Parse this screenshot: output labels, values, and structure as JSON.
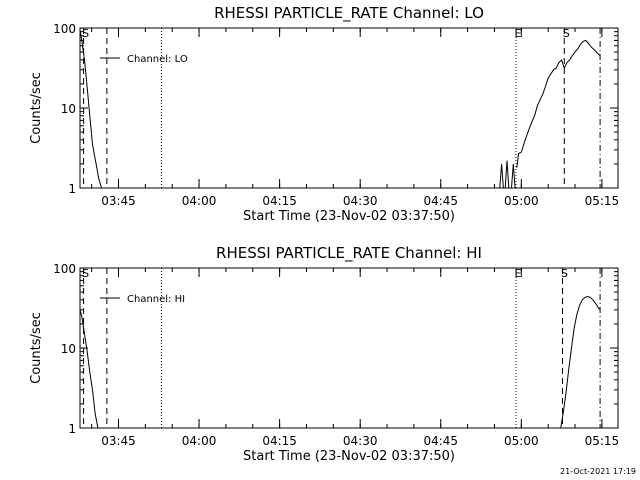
{
  "footer": {
    "timestamp": "21-Oct-2021 17:19"
  },
  "chart_data": [
    {
      "type": "line",
      "title": "RHESSI PARTICLE_RATE Channel: LO",
      "xlabel": "Start Time (23-Nov-02 03:37:50)",
      "ylabel": "Counts/sec",
      "yscale": "log",
      "ylim": [
        1,
        100
      ],
      "yticks": [
        {
          "value": 1,
          "label": "1"
        },
        {
          "value": 10,
          "label": "10"
        },
        {
          "value": 100,
          "label": "100"
        }
      ],
      "xlim": [
        "03:37:50",
        "05:18:00"
      ],
      "xticks": [
        {
          "time": "03:45",
          "label": "03:45"
        },
        {
          "time": "04:00",
          "label": "04:00"
        },
        {
          "time": "04:15",
          "label": "04:15"
        },
        {
          "time": "04:30",
          "label": "04:30"
        },
        {
          "time": "04:45",
          "label": "04:45"
        },
        {
          "time": "05:00",
          "label": "05:00"
        },
        {
          "time": "05:15",
          "label": "05:15"
        }
      ],
      "legend": {
        "label": "Channel: LO",
        "placement": "top-left"
      },
      "markers": [
        {
          "time": "03:38:30",
          "style": "dashed",
          "label": "S"
        },
        {
          "time": "03:42:50",
          "style": "dashed",
          "label": ""
        },
        {
          "time": "03:53:00",
          "style": "dotted",
          "label": ""
        },
        {
          "time": "04:59:00",
          "style": "dotted",
          "label": "E"
        },
        {
          "time": "05:08:00",
          "style": "dashed",
          "label": "S"
        },
        {
          "time": "05:14:40",
          "style": "dashdot",
          "label": ""
        }
      ],
      "series": [
        {
          "name": "Channel: LO",
          "segments": [
            {
              "x": [
                "03:37:50",
                "03:38:10",
                "03:38:40",
                "03:39:10",
                "03:39:40",
                "03:40:10",
                "03:40:50",
                "03:41:20",
                "03:41:50"
              ],
              "y": [
                95,
                70,
                40,
                18,
                8,
                3.5,
                2,
                1.3,
                1
              ]
            },
            {
              "x": [
                "04:56:00",
                "04:56:20",
                "04:56:40"
              ],
              "y": [
                1,
                2,
                1
              ]
            },
            {
              "x": [
                "04:57:00",
                "04:57:20",
                "04:57:40"
              ],
              "y": [
                1,
                2.2,
                1
              ]
            },
            {
              "x": [
                "04:58:10",
                "04:58:30",
                "04:58:50"
              ],
              "y": [
                1,
                2,
                1
              ]
            },
            {
              "x": [
                "04:59:10",
                "04:59:30",
                "05:00:00",
                "05:00:30",
                "05:01:00",
                "05:01:30",
                "05:02:00",
                "05:02:30",
                "05:03:00",
                "05:03:30",
                "05:04:00",
                "05:04:30",
                "05:05:00",
                "05:05:30",
                "05:06:00",
                "05:06:30",
                "05:07:00",
                "05:07:30",
                "05:08:00",
                "05:08:30",
                "05:09:00",
                "05:09:30",
                "05:10:00",
                "05:10:30",
                "05:11:00",
                "05:11:30",
                "05:12:00",
                "05:12:30",
                "05:13:00",
                "05:13:30",
                "05:14:00",
                "05:14:40"
              ],
              "y": [
                1.8,
                2.7,
                2.8,
                3.6,
                4.5,
                5.6,
                6.8,
                8.1,
                10.7,
                12.7,
                14.9,
                18.6,
                23.7,
                26.7,
                30,
                31.5,
                36.9,
                39.8,
                31.5,
                37,
                40,
                45,
                50,
                55,
                62,
                68,
                70,
                64,
                58,
                54,
                50,
                45
              ]
            }
          ]
        }
      ]
    },
    {
      "type": "line",
      "title": "RHESSI PARTICLE_RATE Channel: HI",
      "xlabel": "Start Time (23-Nov-02 03:37:50)",
      "ylabel": "Counts/sec",
      "yscale": "log",
      "ylim": [
        1,
        100
      ],
      "yticks": [
        {
          "value": 1,
          "label": "1"
        },
        {
          "value": 10,
          "label": "10"
        },
        {
          "value": 100,
          "label": "100"
        }
      ],
      "xlim": [
        "03:37:50",
        "05:18:00"
      ],
      "xticks": [
        {
          "time": "03:45",
          "label": "03:45"
        },
        {
          "time": "04:00",
          "label": "04:00"
        },
        {
          "time": "04:15",
          "label": "04:15"
        },
        {
          "time": "04:30",
          "label": "04:30"
        },
        {
          "time": "04:45",
          "label": "04:45"
        },
        {
          "time": "05:00",
          "label": "05:00"
        },
        {
          "time": "05:15",
          "label": "05:15"
        }
      ],
      "legend": {
        "label": "Channel: HI",
        "placement": "top-left"
      },
      "markers": [
        {
          "time": "03:38:30",
          "style": "dashed",
          "label": "S"
        },
        {
          "time": "03:42:50",
          "style": "dashed",
          "label": ""
        },
        {
          "time": "03:53:00",
          "style": "dotted",
          "label": ""
        },
        {
          "time": "04:59:00",
          "style": "dotted",
          "label": "E"
        },
        {
          "time": "05:07:40",
          "style": "dashed",
          "label": "S"
        },
        {
          "time": "05:14:40",
          "style": "dashdot",
          "label": ""
        }
      ],
      "series": [
        {
          "name": "Channel: HI",
          "segments": [
            {
              "x": [
                "03:37:50",
                "03:38:10",
                "03:38:40",
                "03:39:10",
                "03:39:40",
                "03:40:10",
                "03:40:40",
                "03:41:10"
              ],
              "y": [
                30,
                25,
                15,
                9,
                5,
                3,
                1.5,
                1
              ]
            },
            {
              "x": [
                "05:07:20",
                "05:07:50",
                "05:08:20",
                "05:08:50",
                "05:09:20",
                "05:09:50",
                "05:10:20",
                "05:10:50",
                "05:11:20",
                "05:11:50",
                "05:12:20",
                "05:12:50",
                "05:13:20",
                "05:13:50",
                "05:14:20",
                "05:14:40"
              ],
              "y": [
                1,
                1.6,
                2.8,
                5.5,
                10,
                17.6,
                26,
                34,
                39.8,
                42.9,
                44,
                43,
                40,
                36,
                32,
                30
              ]
            }
          ]
        }
      ]
    }
  ]
}
